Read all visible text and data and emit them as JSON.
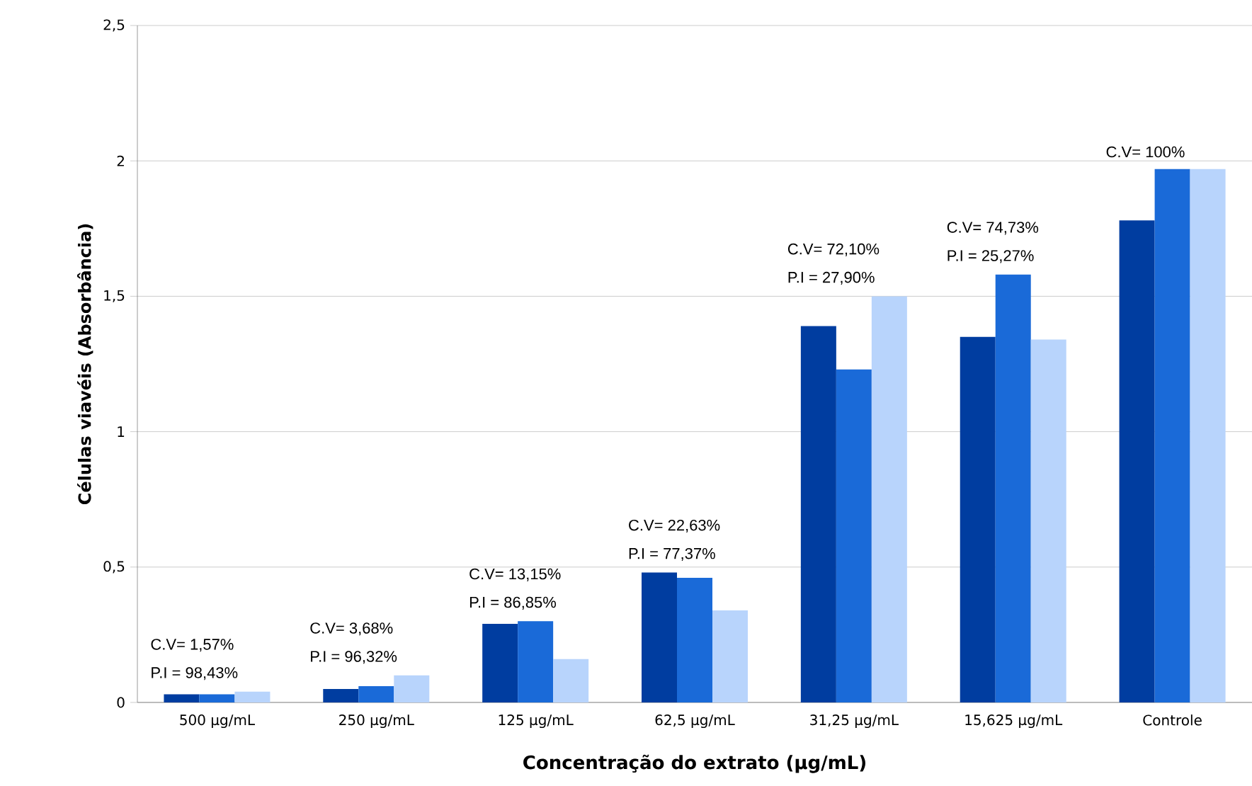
{
  "chart_data": {
    "type": "bar",
    "xlabel": "Concentração do extrato (µg/mL)",
    "ylabel": "Células viavéis (Absorbância)",
    "categories": [
      "500 µg/mL",
      "250 µg/mL",
      "125 µg/mL",
      "62,5 µg/mL",
      "31,25 µg/mL",
      "15,625 µg/mL",
      "Controle"
    ],
    "series": [
      {
        "color": "#003da0",
        "values": [
          0.03,
          0.05,
          0.29,
          0.48,
          1.39,
          1.35,
          1.78
        ]
      },
      {
        "color": "#1a6ad8",
        "values": [
          0.03,
          0.06,
          0.3,
          0.46,
          1.23,
          1.58,
          1.97
        ]
      },
      {
        "color": "#b8d4fc",
        "values": [
          0.04,
          0.1,
          0.16,
          0.34,
          1.5,
          1.34,
          1.97
        ]
      }
    ],
    "ylim": [
      0,
      2.5
    ],
    "yticks": [
      0,
      {
        "value": 0.5,
        "label": "0,5"
      },
      1,
      {
        "value": 1.5,
        "label": "1,5"
      },
      2,
      {
        "value": 2.5,
        "label": "2,5"
      }
    ],
    "grid": "y",
    "annotations": [
      "C.V= 1,57%",
      "P.I  = 98,43%",
      "C.V= 3,68%",
      "P.I  = 96,32%",
      "C.V= 13,15%",
      "P.I  = 86,85%",
      "C.V= 22,63%",
      "P.I  = 77,37%",
      "C.V= 72,10%",
      "P.I  = 27,90%",
      "C.V= 74,73%",
      "P.I  = 25,27%",
      "C.V= 100%"
    ]
  }
}
